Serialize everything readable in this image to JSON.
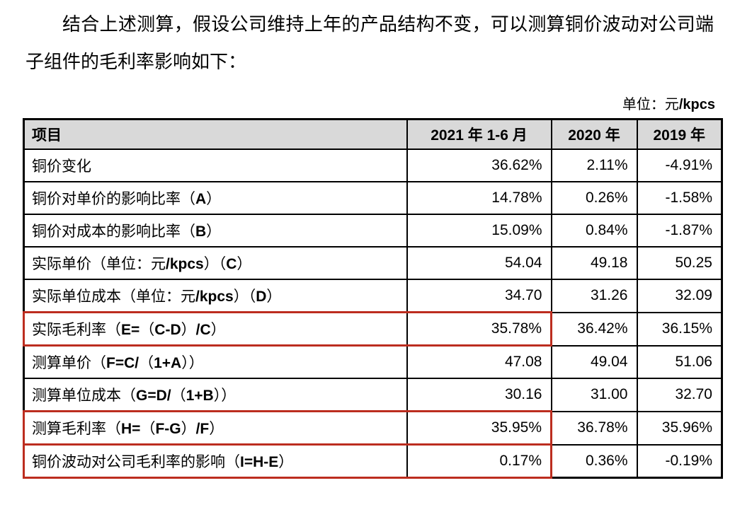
{
  "intro": {
    "text": "结合上述测算，假设公司维持上年的产品结构不变，可以测算铜价波动对公司端子组件的毛利率影响如下："
  },
  "unit_label": "单位：元/kpcs",
  "table": {
    "headers": [
      "项目",
      "2021 年 1-6 月",
      "2020 年",
      "2019 年"
    ],
    "rows": [
      {
        "label": "铜价变化",
        "values": [
          "36.62%",
          "2.11%",
          "-4.91%"
        ],
        "highlight": false
      },
      {
        "label": "铜价对单价的影响比率（A）",
        "values": [
          "14.78%",
          "0.26%",
          "-1.58%"
        ],
        "highlight": false
      },
      {
        "label": "铜价对成本的影响比率（B）",
        "values": [
          "15.09%",
          "0.84%",
          "-1.87%"
        ],
        "highlight": false
      },
      {
        "label": "实际单价（单位：元/kpcs）（C）",
        "values": [
          "54.04",
          "49.18",
          "50.25"
        ],
        "highlight": false
      },
      {
        "label": "实际单位成本（单位：元/kpcs）（D）",
        "values": [
          "34.70",
          "31.26",
          "32.09"
        ],
        "highlight": false
      },
      {
        "label": "实际毛利率（E=（C-D）/C）",
        "values": [
          "35.78%",
          "36.42%",
          "36.15%"
        ],
        "highlight": true
      },
      {
        "label": "测算单价（F=C/（1+A））",
        "values": [
          "47.08",
          "49.04",
          "51.06"
        ],
        "highlight": false
      },
      {
        "label": "测算单位成本（G=D/（1+B））",
        "values": [
          "30.16",
          "31.00",
          "32.70"
        ],
        "highlight": false
      },
      {
        "label": "测算毛利率（H=（F-G）/F）",
        "values": [
          "35.95%",
          "36.78%",
          "35.96%"
        ],
        "highlight": true
      },
      {
        "label": "铜价波动对公司毛利率的影响（I=H-E）",
        "values": [
          "0.17%",
          "0.36%",
          "-0.19%"
        ],
        "highlight": true
      }
    ]
  },
  "colors": {
    "highlight_red": "#bc2d1f",
    "header_bg": "#d9d9d9",
    "border": "#000000"
  }
}
